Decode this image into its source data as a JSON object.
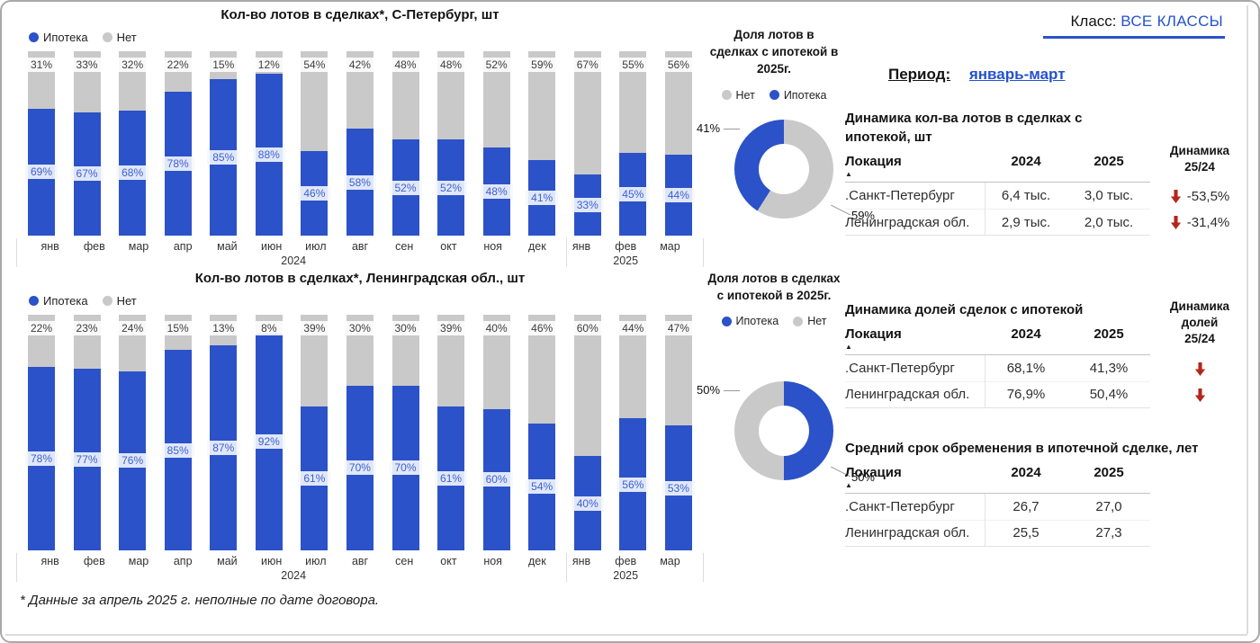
{
  "filters": {
    "class_label": "Класс:",
    "class_value": "ВСЕ КЛАССЫ",
    "period_label": "Период:",
    "period_value": "январь-март"
  },
  "footnote": "* Данные за апрель 2025 г. неполные по дате договора.",
  "colors": {
    "mortgage": "#2b52c8",
    "no_mortgage": "#c9c9c9",
    "link_blue": "#2452cd",
    "arrow_red": "#b3261a"
  },
  "chart_data": [
    {
      "type": "bar",
      "stacked": "percent",
      "title": "Кол-во лотов в сделках*, С-Петербург, шт",
      "legend": [
        {
          "label": "Ипотека",
          "color": "mortgage"
        },
        {
          "label": "Нет",
          "color": "no_mortgage"
        }
      ],
      "categories": [
        "янв",
        "фев",
        "мар",
        "апр",
        "май",
        "июн",
        "июл",
        "авг",
        "сен",
        "окт",
        "ноя",
        "дек",
        "янв",
        "фев",
        "мар"
      ],
      "year_groups": [
        {
          "label": "2024",
          "months": 12
        },
        {
          "label": "2025",
          "months": 3
        }
      ],
      "series": [
        {
          "name": "Ипотека",
          "color": "mortgage",
          "values": [
            69,
            67,
            68,
            78,
            85,
            88,
            46,
            58,
            52,
            52,
            48,
            41,
            33,
            45,
            44
          ]
        },
        {
          "name": "Нет",
          "color": "no_mortgage",
          "values": [
            31,
            33,
            32,
            22,
            15,
            12,
            54,
            42,
            48,
            48,
            52,
            59,
            67,
            55,
            56
          ]
        }
      ],
      "ylim": [
        0,
        100
      ],
      "unit": "%"
    },
    {
      "type": "bar",
      "stacked": "percent",
      "title": "Кол-во лотов в сделках*, Ленинградская обл., шт",
      "legend": [
        {
          "label": "Ипотека",
          "color": "mortgage"
        },
        {
          "label": "Нет",
          "color": "no_mortgage"
        }
      ],
      "categories": [
        "янв",
        "фев",
        "мар",
        "апр",
        "май",
        "июн",
        "июл",
        "авг",
        "сен",
        "окт",
        "ноя",
        "дек",
        "янв",
        "фев",
        "мар"
      ],
      "year_groups": [
        {
          "label": "2024",
          "months": 12
        },
        {
          "label": "2025",
          "months": 3
        }
      ],
      "series": [
        {
          "name": "Ипотека",
          "color": "mortgage",
          "values": [
            78,
            77,
            76,
            85,
            87,
            92,
            61,
            70,
            70,
            61,
            60,
            54,
            40,
            56,
            53
          ]
        },
        {
          "name": "Нет",
          "color": "no_mortgage",
          "values": [
            22,
            23,
            24,
            15,
            13,
            8,
            39,
            30,
            30,
            39,
            40,
            46,
            60,
            44,
            47
          ]
        }
      ],
      "ylim": [
        0,
        100
      ],
      "unit": "%"
    },
    {
      "type": "donut",
      "title": "Доля лотов в сделках с ипотекой в 2025г.",
      "title_lines": [
        "Доля лотов в",
        "сделках с ипотекой в",
        "2025г."
      ],
      "legend": [
        {
          "label": "Нет",
          "color": "no_mortgage"
        },
        {
          "label": "Ипотека",
          "color": "mortgage"
        }
      ],
      "slices": [
        {
          "name": "Нет",
          "value": 59,
          "color": "no_mortgage",
          "label_position": "bottom-right"
        },
        {
          "name": "Ипотека",
          "value": 41,
          "color": "mortgage",
          "label_position": "top-left"
        }
      ],
      "unit": "%"
    },
    {
      "type": "donut",
      "title": "Доля лотов в сделках с ипотекой в 2025г.",
      "title_lines": [
        "Доля лотов в сделках",
        "с ипотекой в 2025г."
      ],
      "legend": [
        {
          "label": "Ипотека",
          "color": "mortgage"
        },
        {
          "label": "Нет",
          "color": "no_mortgage"
        }
      ],
      "slices": [
        {
          "name": "Ипотека",
          "value": 50,
          "color": "mortgage",
          "label_position": "bottom-right"
        },
        {
          "name": "Нет",
          "value": 50,
          "color": "no_mortgage",
          "label_position": "top-left"
        }
      ],
      "unit": "%"
    }
  ],
  "tables": [
    {
      "title": "Динамика кол-ва лотов в сделках с ипотекой, шт",
      "location_header": "Локация",
      "year_headers": [
        "2024",
        "2025"
      ],
      "dynamics_header_lines": [
        "Динамика",
        "25/24"
      ],
      "rows": [
        {
          "location": ".Санкт-Петербург",
          "values": [
            "6,4 тыс.",
            "3,0 тыс."
          ],
          "dynamics": {
            "arrow": "down",
            "text": "-53,5%"
          }
        },
        {
          "location": "Ленинградская обл.",
          "values": [
            "2,9 тыс.",
            "2,0 тыс."
          ],
          "dynamics": {
            "arrow": "down",
            "text": "-31,4%"
          }
        }
      ]
    },
    {
      "title": "Динамика долей сделок с ипотекой",
      "location_header": "Локация",
      "year_headers": [
        "2024",
        "2025"
      ],
      "dynamics_header_lines": [
        "Динамика",
        "долей",
        "25/24"
      ],
      "rows": [
        {
          "location": ".Санкт-Петербург",
          "values": [
            "68,1%",
            "41,3%"
          ],
          "dynamics": {
            "arrow": "down",
            "text": ""
          }
        },
        {
          "location": "Ленинградская обл.",
          "values": [
            "76,9%",
            "50,4%"
          ],
          "dynamics": {
            "arrow": "down",
            "text": ""
          }
        }
      ]
    },
    {
      "title": "Средний срок обременения в ипотечной сделке, лет",
      "location_header": "Локация",
      "year_headers": [
        "2024",
        "2025"
      ],
      "rows": [
        {
          "location": ".Санкт-Петербург",
          "values": [
            "26,7",
            "27,0"
          ]
        },
        {
          "location": "Ленинградская обл.",
          "values": [
            "25,5",
            "27,3"
          ]
        }
      ]
    }
  ]
}
